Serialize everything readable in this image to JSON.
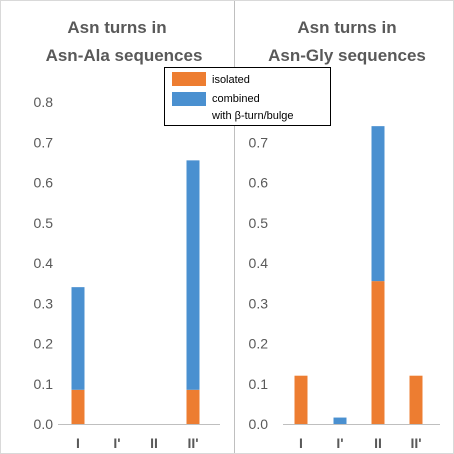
{
  "colors": {
    "isolated": "#ED7D31",
    "combined": "#4A90D0",
    "axis": "#BFBFBF",
    "text": "#595959"
  },
  "legend": {
    "placement": "top-center",
    "items": [
      {
        "key": "isolated",
        "label": "isolated"
      },
      {
        "key": "combined",
        "label_line1": "combined",
        "label_line2": "with β-turn/bulge"
      }
    ]
  },
  "chart_data": [
    {
      "type": "bar",
      "stacked": true,
      "title_line1": "Asn turns in",
      "title_line2": "Asn-Ala sequences",
      "categories": [
        "I",
        "I'",
        "II",
        "II'"
      ],
      "series": [
        {
          "key": "isolated",
          "values": [
            0.085,
            0,
            0,
            0.085
          ]
        },
        {
          "key": "combined",
          "values": [
            0.255,
            0,
            0,
            0.57
          ]
        }
      ],
      "ylim": [
        0,
        0.8
      ],
      "yticks": [
        "0.0",
        "0.1",
        "0.2",
        "0.3",
        "0.4",
        "0.5",
        "0.6",
        "0.7",
        "0.8"
      ],
      "grid": false
    },
    {
      "type": "bar",
      "stacked": true,
      "title_line1": "Asn turns in",
      "title_line2": "Asn-Gly sequences",
      "categories": [
        "I",
        "I'",
        "II",
        "II'"
      ],
      "series": [
        {
          "key": "isolated",
          "values": [
            0.12,
            0,
            0.355,
            0.12
          ]
        },
        {
          "key": "combined",
          "values": [
            0,
            0.016,
            0.385,
            0
          ]
        }
      ],
      "ylim": [
        0,
        0.8
      ],
      "yticks": [
        "0.0",
        "0.1",
        "0.2",
        "0.3",
        "0.4",
        "0.5",
        "0.6",
        "0.7"
      ],
      "grid": false
    }
  ]
}
